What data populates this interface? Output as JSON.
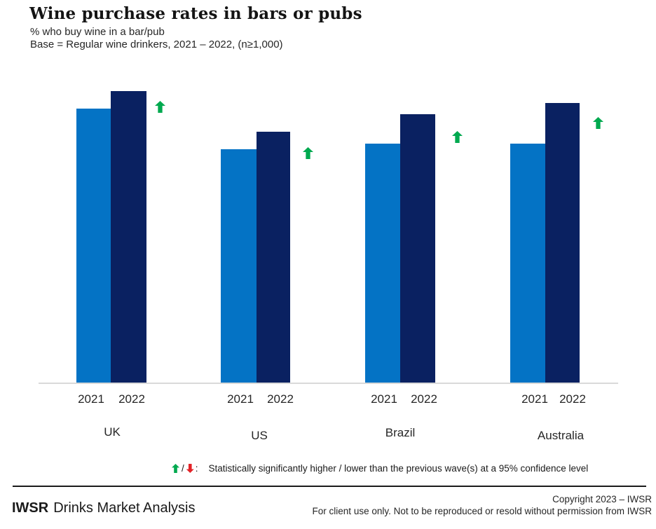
{
  "header": {
    "title": "Wine purchase rates in bars or pubs",
    "subtitle": "% who buy wine in a bar/pub",
    "base_note": "Base = Regular wine drinkers, 2021 – 2022, (n≥1,000)"
  },
  "chart_data": {
    "type": "bar",
    "title": "Wine purchase rates in bars or pubs",
    "ylabel": "% who buy wine in a bar/pub",
    "categories": [
      "UK",
      "US",
      "Brazil",
      "Australia"
    ],
    "series": [
      {
        "name": "2021",
        "color": "#0473c5",
        "values": [
          47,
          40,
          41,
          41
        ]
      },
      {
        "name": "2022",
        "color": "#0a2161",
        "values": [
          50,
          43,
          46,
          48
        ]
      }
    ],
    "significance_vs_previous_wave": [
      "higher",
      "higher",
      "higher",
      "higher"
    ],
    "ylim": [
      0,
      55
    ],
    "grid": false,
    "axis_tick_labels_shown": false,
    "legend_position": "year-labels-under-bars"
  },
  "colors": {
    "bar_2021": "#0473c5",
    "bar_2022": "#0a2161",
    "significant_up": "#00a94f",
    "significant_down": "#e32227",
    "axis_line": "#d9d9d9"
  },
  "icons": {
    "up": "block-up-arrow",
    "down": "block-down-arrow"
  },
  "footnote": {
    "separator": "/",
    "colon": ":",
    "text": "Statistically significantly higher / lower than the previous wave(s) at a 95% confidence level"
  },
  "footer": {
    "brand_bold": "IWSR",
    "brand_rest": "Drinks Market Analysis",
    "copyright_line": "Copyright 2023 – IWSR",
    "usage_line": "For client use only. Not to be reproduced or resold without permission from IWSR"
  }
}
